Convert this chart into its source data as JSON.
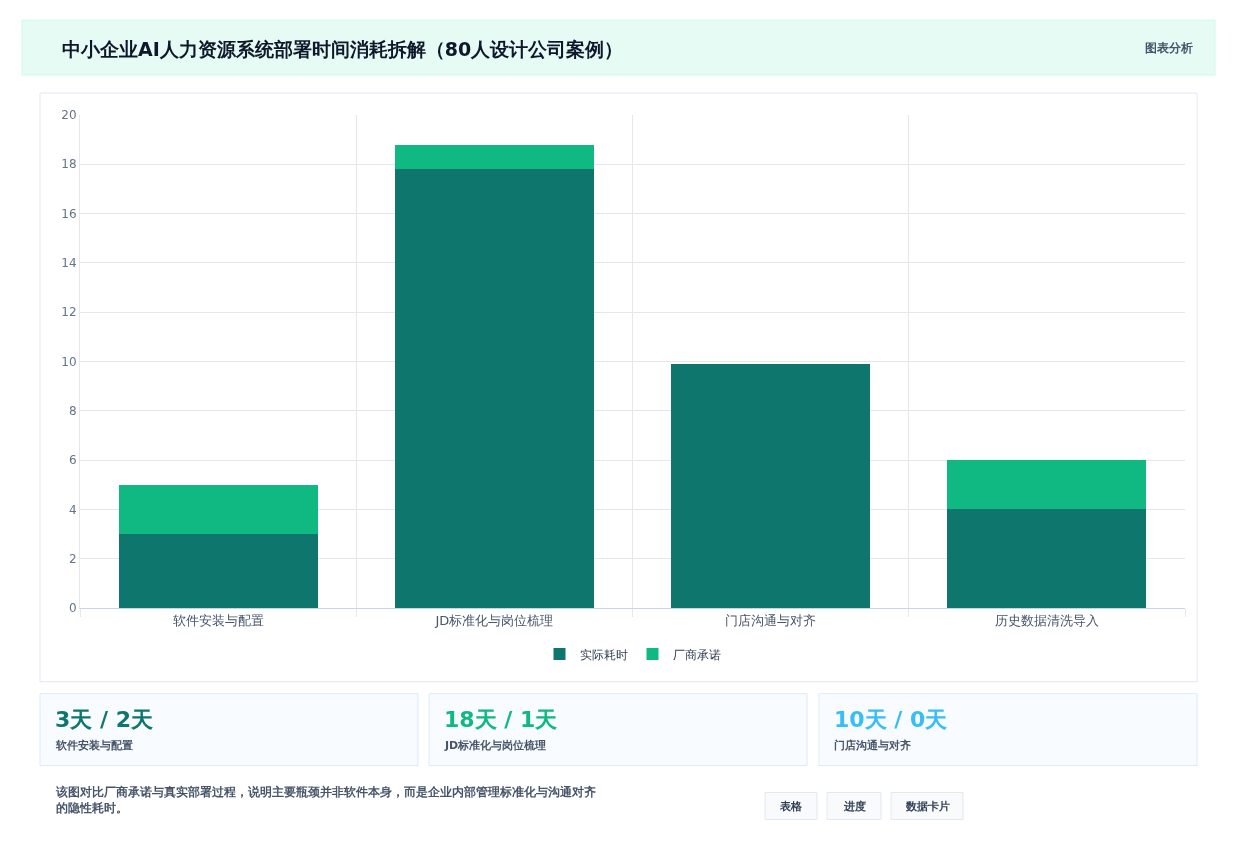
{
  "chart_data": {
    "type": "bar",
    "title": "中小企业AI人力资源系统部署时间消耗拆解（80人设计公司案例）",
    "categories": [
      "软件安装与配置",
      "JD标准化与岗位梳理",
      "门店沟通与对齐",
      "历史数据清洗导入"
    ],
    "series": [
      {
        "name": "实际耗时",
        "color": "#0f766e",
        "values": [
          3,
          17.8,
          9.9,
          4
        ]
      },
      {
        "name": "厂商承诺",
        "color": "#10b981",
        "values": [
          2,
          1,
          0,
          2
        ]
      }
    ],
    "stacked": true,
    "ylim": [
      0,
      20
    ],
    "yticks": [
      0,
      2,
      4,
      6,
      8,
      10,
      12,
      14,
      16,
      18,
      20
    ],
    "grid": true,
    "legend": "bottom",
    "annotations": [
      "图表分析",
      "3天 / 2天",
      "软件安装与配置",
      "18天 / 1天",
      "JD标准化与岗位梳理",
      "10天 / 0天",
      "门店沟通与对齐",
      "该图对比厂商承诺与真实部署过程，说明主要瓶颈并非软件本身，而是企业内部管理标准化与沟通对齐的隐性耗时。",
      "表格",
      "进度",
      "数据卡片"
    ]
  }
}
